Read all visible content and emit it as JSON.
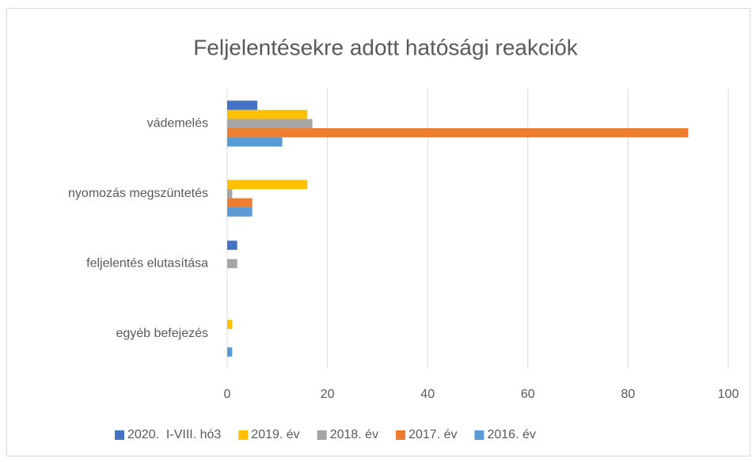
{
  "chart_data": {
    "type": "bar",
    "orientation": "horizontal",
    "title": "Feljelentésekre adott hatósági reakciók",
    "categories": [
      "vádemelés",
      "nyomozás megszüntetés",
      "feljelentés elutasítása",
      "egyéb befejezés"
    ],
    "series": [
      {
        "name": "2020.  I-VIII. hó3",
        "color": "#4472c4",
        "values": [
          6,
          0,
          2,
          0
        ]
      },
      {
        "name": "2019. év",
        "color": "#ffc000",
        "values": [
          16,
          16,
          0,
          1
        ]
      },
      {
        "name": "2018. év",
        "color": "#a5a5a5",
        "values": [
          17,
          1,
          2,
          0
        ]
      },
      {
        "name": "2017. év",
        "color": "#ed7d31",
        "values": [
          92,
          5,
          0,
          0
        ]
      },
      {
        "name": "2016. év",
        "color": "#5b9bd5",
        "values": [
          11,
          5,
          0,
          1
        ]
      }
    ],
    "xlim": [
      0,
      100
    ],
    "xticks": [
      0,
      20,
      40,
      60,
      80,
      100
    ],
    "grid": true,
    "legend": "bottom"
  }
}
